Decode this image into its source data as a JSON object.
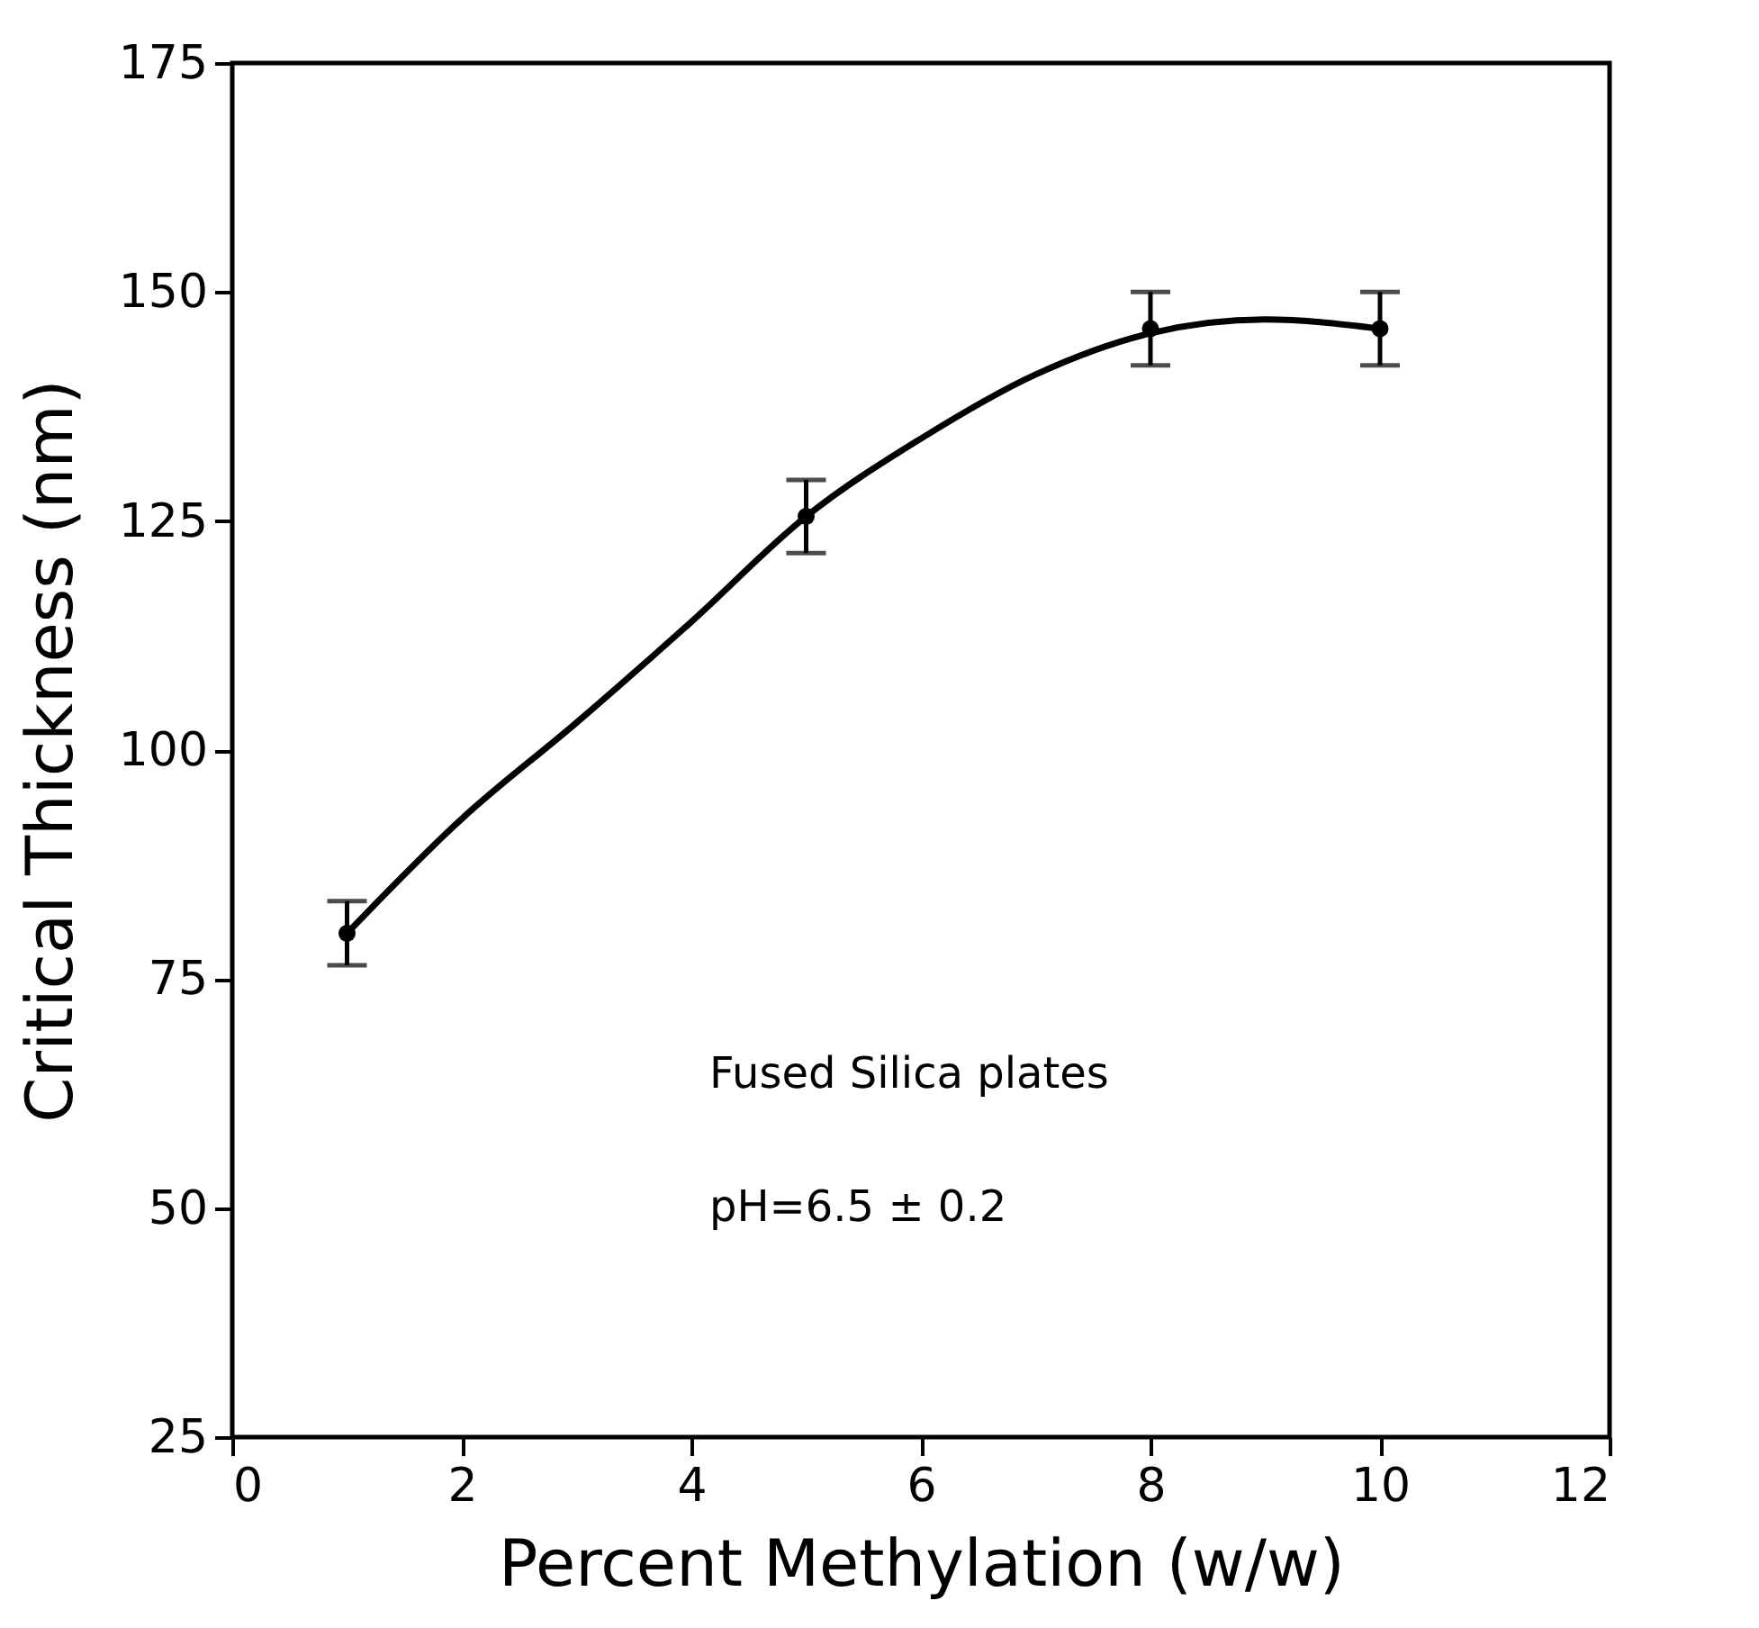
{
  "chart_data": {
    "type": "scatter",
    "xlabel": "Percent Methylation (w/w)",
    "ylabel": "Critical Thickness (nm)",
    "xlim": [
      0,
      12
    ],
    "xticks": [
      0,
      2,
      4,
      6,
      8,
      10,
      12
    ],
    "ylim": [
      25,
      175
    ],
    "yticks": [
      25,
      50,
      75,
      100,
      125,
      150,
      175
    ],
    "grid": false,
    "marker": "circle",
    "annotations": [
      "Fused Silica plates",
      "pH=6.5 ± 0.2"
    ],
    "series": [
      {
        "color": "#000000",
        "x": [
          1,
          5,
          8,
          10
        ],
        "values": [
          80,
          125.5,
          146,
          146
        ],
        "errors": [
          3.5,
          4,
          4,
          4
        ]
      },
      {
        "type": "line",
        "color": "#000000",
        "marker": "none",
        "line_style": "solid",
        "x": [
          1,
          2,
          3,
          4,
          5,
          6,
          7,
          8,
          9,
          10
        ],
        "values": [
          80,
          92.5,
          103,
          114,
          125.5,
          134,
          141,
          145.5,
          147,
          146
        ]
      }
    ]
  }
}
